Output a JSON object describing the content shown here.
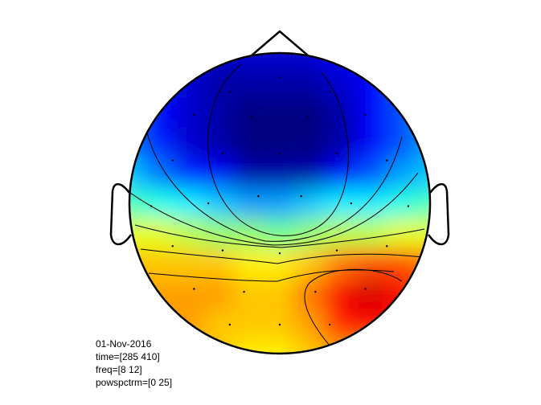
{
  "info": {
    "date": "01-Nov-2016",
    "time": "time=[285 410]",
    "freq": "freq=[8 12]",
    "powspctrm": "powspctrm=[0 25]"
  },
  "colors": {
    "background": "#ffffff",
    "outline": "#000000",
    "colormap": "jet"
  },
  "topoplot": {
    "zlim": [
      0,
      25
    ],
    "map_cells": [
      [
        8,
        4,
        2,
        2,
        2,
        2,
        2,
        3,
        4,
        6,
        8
      ],
      [
        7,
        4,
        2,
        1,
        1,
        1,
        1,
        2,
        3,
        5,
        7
      ],
      [
        6,
        3,
        2,
        1,
        0,
        0,
        0,
        1,
        3,
        5,
        7
      ],
      [
        6,
        4,
        2,
        1,
        0,
        0,
        0,
        1,
        3,
        5,
        7
      ],
      [
        8,
        6,
        4,
        3,
        1,
        1,
        1,
        3,
        5,
        7,
        8
      ],
      [
        11,
        10,
        9,
        8,
        7,
        7,
        8,
        9,
        9,
        10,
        11
      ],
      [
        15,
        15,
        14,
        13,
        13,
        12,
        13,
        14,
        14,
        15,
        15
      ],
      [
        17,
        17,
        17,
        17,
        16,
        16,
        17,
        19,
        20,
        20,
        19
      ],
      [
        18,
        18,
        18,
        18,
        17,
        17,
        19,
        22,
        23,
        22,
        20
      ],
      [
        18,
        18,
        18,
        17,
        17,
        17,
        18,
        21,
        22,
        21,
        19
      ],
      [
        17,
        17,
        17,
        17,
        16,
        16,
        17,
        18,
        18,
        18,
        17
      ]
    ],
    "electrodes": [
      [
        0.0,
        -0.88
      ],
      [
        -0.35,
        -0.78
      ],
      [
        0.35,
        -0.78
      ],
      [
        -0.6,
        -0.62
      ],
      [
        -0.2,
        -0.6
      ],
      [
        0.2,
        -0.6
      ],
      [
        0.6,
        -0.62
      ],
      [
        -0.75,
        -0.3
      ],
      [
        -0.4,
        -0.35
      ],
      [
        0.0,
        -0.35
      ],
      [
        0.4,
        -0.35
      ],
      [
        0.75,
        -0.3
      ],
      [
        -0.9,
        0.02
      ],
      [
        -0.5,
        0.0
      ],
      [
        -0.15,
        -0.05
      ],
      [
        0.15,
        -0.05
      ],
      [
        0.5,
        0.0
      ],
      [
        0.9,
        0.02
      ],
      [
        -0.75,
        0.3
      ],
      [
        -0.4,
        0.33
      ],
      [
        0.0,
        0.35
      ],
      [
        0.4,
        0.33
      ],
      [
        0.75,
        0.3
      ],
      [
        -0.6,
        0.6
      ],
      [
        -0.25,
        0.62
      ],
      [
        0.25,
        0.62
      ],
      [
        0.6,
        0.6
      ],
      [
        0.0,
        0.85
      ],
      [
        -0.35,
        0.85
      ],
      [
        0.35,
        0.85
      ]
    ]
  }
}
